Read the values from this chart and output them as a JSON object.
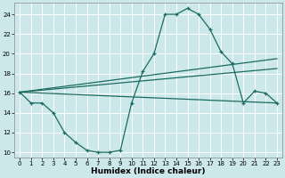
{
  "xlabel": "Humidex (Indice chaleur)",
  "background_color": "#cce8eb",
  "grid_color": "#ffffff",
  "line_color": "#1a6b60",
  "xlim": [
    -0.5,
    23.5
  ],
  "ylim": [
    9.5,
    25.2
  ],
  "yticks": [
    10,
    12,
    14,
    16,
    18,
    20,
    22,
    24
  ],
  "xticks": [
    0,
    1,
    2,
    3,
    4,
    5,
    6,
    7,
    8,
    9,
    10,
    11,
    12,
    13,
    14,
    15,
    16,
    17,
    18,
    19,
    20,
    21,
    22,
    23
  ],
  "series1_x": [
    0,
    1,
    2,
    3,
    4,
    5,
    6,
    7,
    8,
    9,
    10,
    11,
    12,
    13,
    14,
    15,
    16,
    17,
    18,
    19,
    20,
    21,
    22,
    23
  ],
  "series1_y": [
    16.1,
    15.0,
    15.0,
    14.0,
    12.0,
    11.0,
    10.2,
    10.0,
    10.0,
    10.2,
    15.0,
    18.2,
    20.0,
    24.0,
    24.0,
    24.6,
    24.0,
    22.5,
    20.2,
    19.0,
    15.0,
    16.2,
    16.0,
    15.0
  ],
  "series2_x": [
    0,
    23
  ],
  "series2_y": [
    16.1,
    19.5
  ],
  "series3_x": [
    0,
    23
  ],
  "series3_y": [
    16.1,
    18.5
  ],
  "series4_x": [
    0,
    23
  ],
  "series4_y": [
    16.1,
    15.0
  ]
}
